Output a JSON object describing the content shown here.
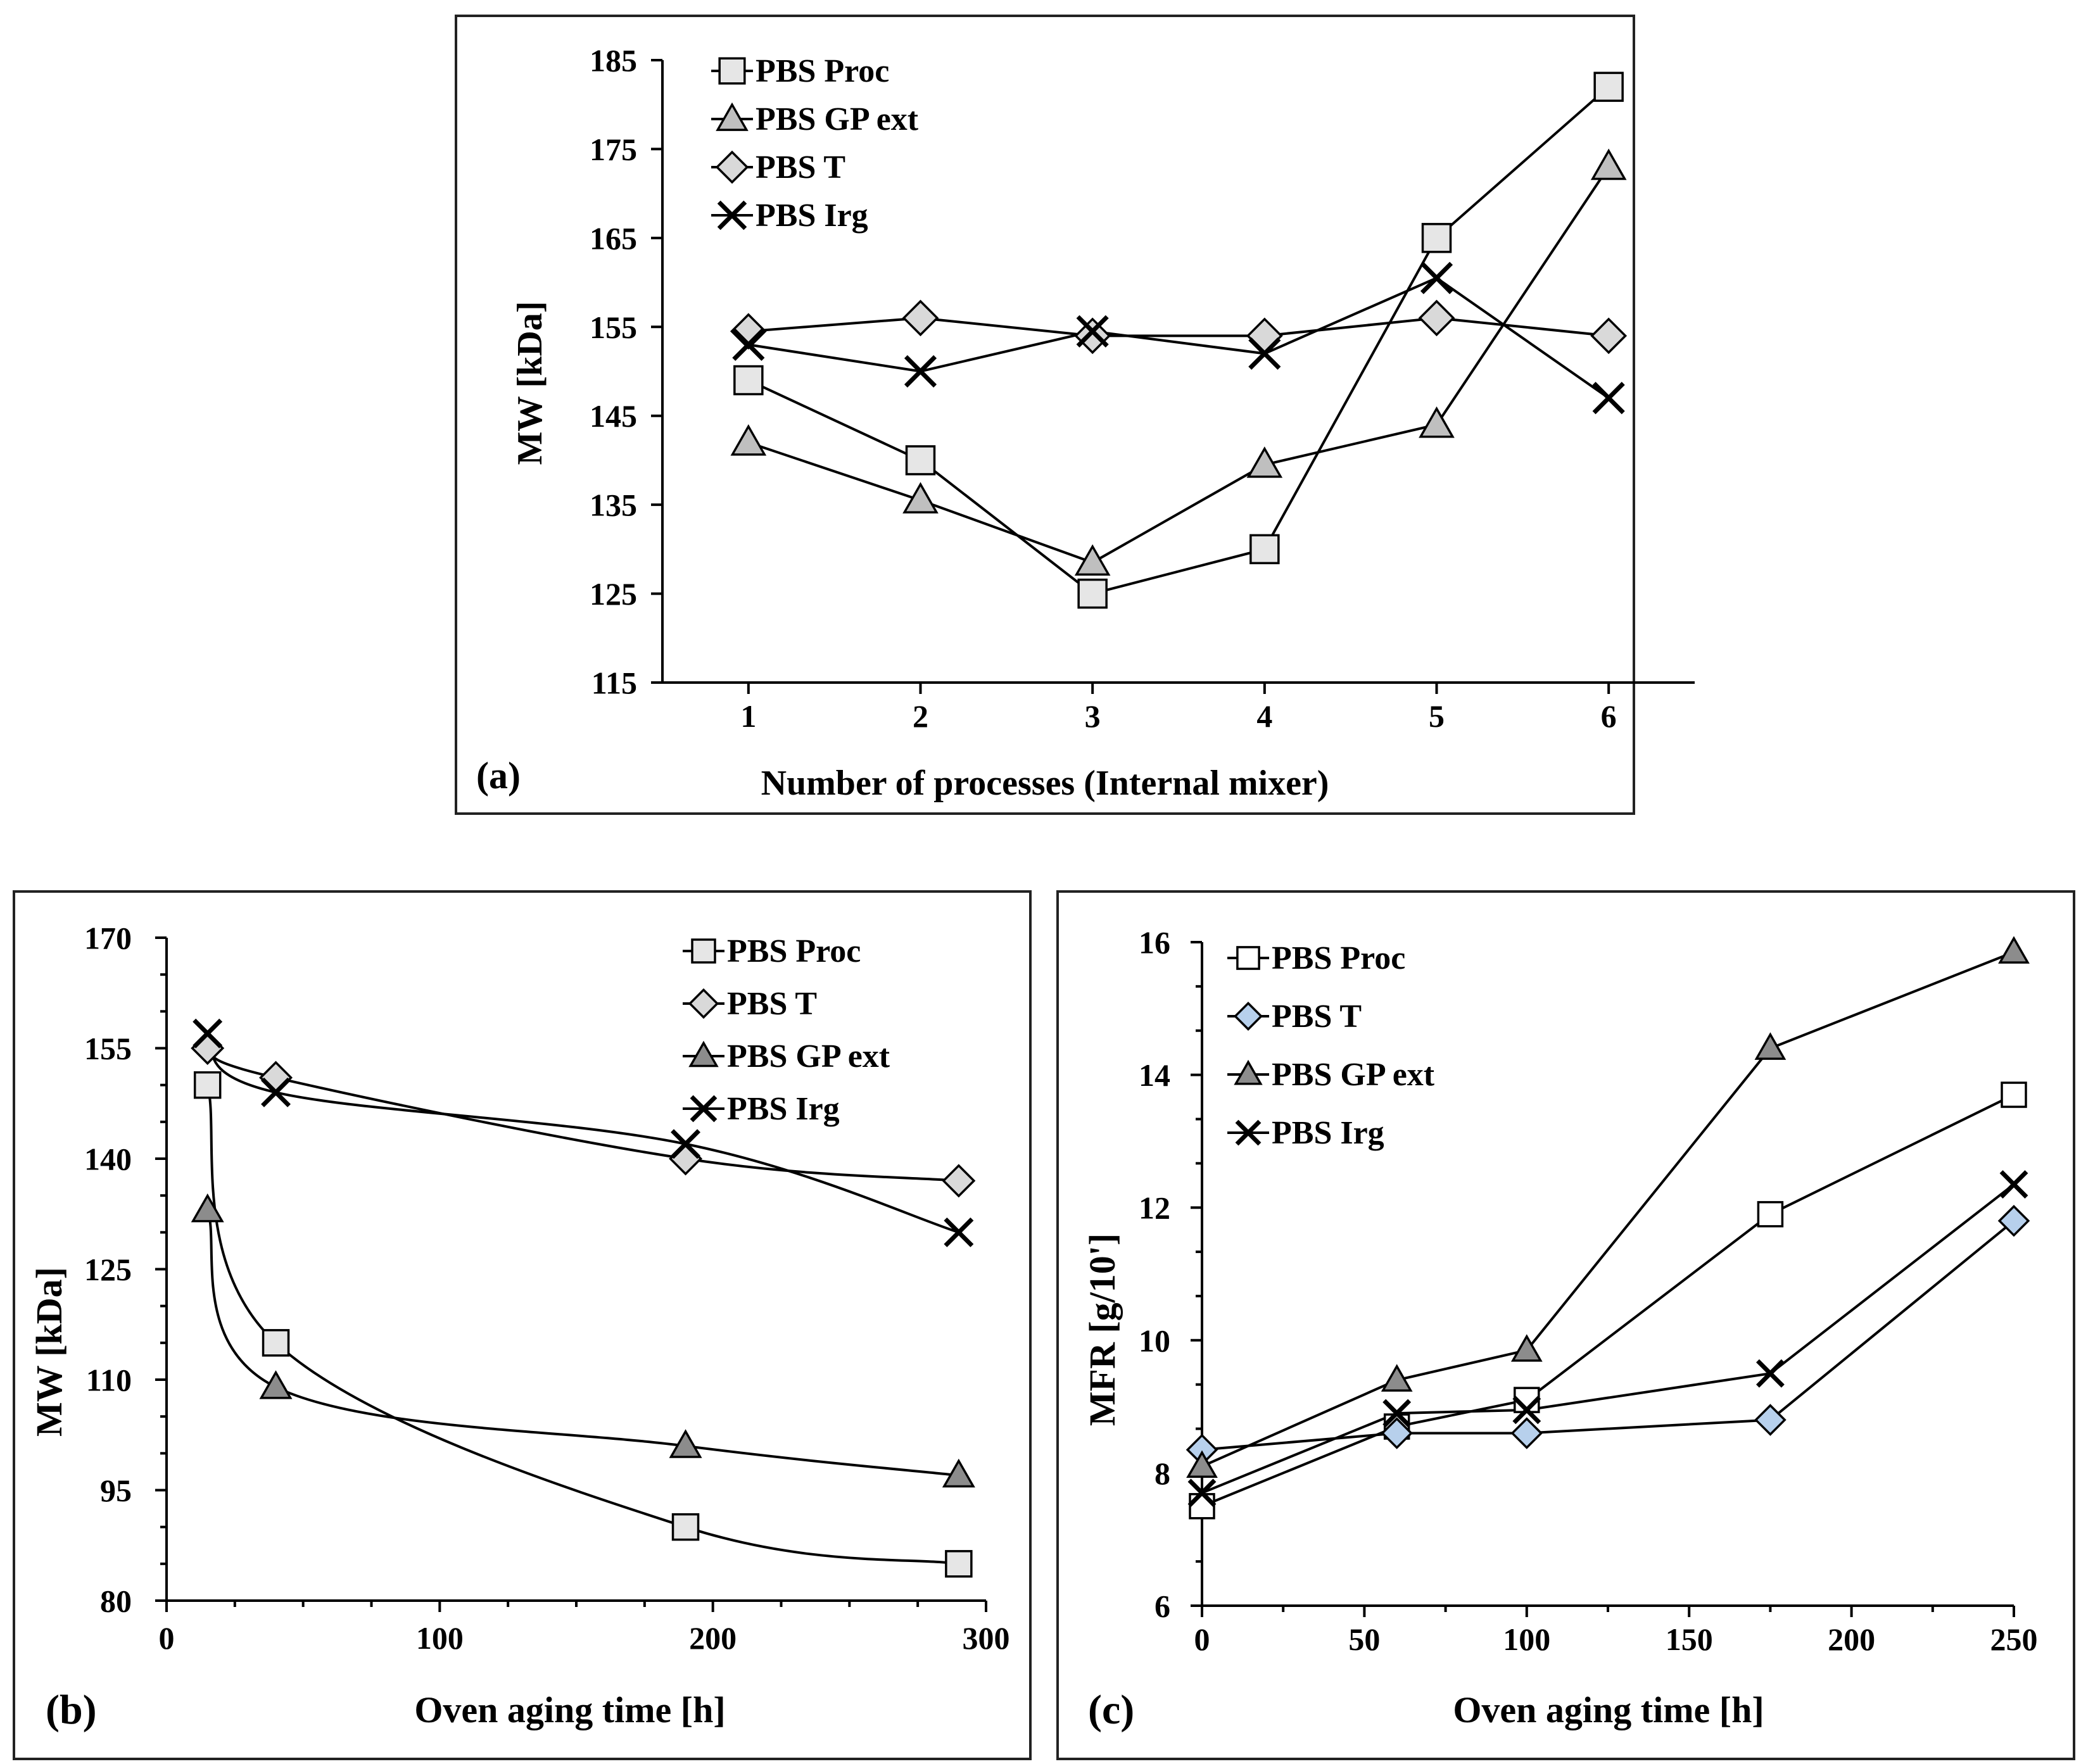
{
  "figure_title": "",
  "chart_data": [
    {
      "panel": "(a)",
      "type": "line",
      "title": "",
      "xlabel": "Number of processes (Internal mixer)",
      "ylabel": "MW [kDa]",
      "xlim": [
        0.5,
        6.5
      ],
      "ylim": [
        115,
        185
      ],
      "xticks": [
        1,
        2,
        3,
        4,
        5,
        6
      ],
      "xtick_labels": [
        "1",
        "2",
        "3",
        "4",
        "5",
        "6"
      ],
      "yticks": [
        115,
        125,
        135,
        145,
        155,
        165,
        175,
        185
      ],
      "ytick_labels": [
        "115",
        "125",
        "135",
        "145",
        "155",
        "165",
        "175",
        "185"
      ],
      "legend_position": "top-left",
      "smooth": false,
      "series": [
        {
          "name": "PBS Proc",
          "marker": "square",
          "fill": "#e6e6e6",
          "x": [
            1,
            2,
            3,
            4,
            5,
            6
          ],
          "values": [
            149,
            140,
            125,
            130,
            165,
            182
          ]
        },
        {
          "name": "PBS GP ext",
          "marker": "triangle",
          "fill": "#bfbfbf",
          "x": [
            1,
            2,
            3,
            4,
            5,
            6
          ],
          "values": [
            142,
            135.5,
            128.5,
            139.5,
            144,
            173
          ]
        },
        {
          "name": "PBS T",
          "marker": "diamond",
          "fill": "#d9d9d9",
          "x": [
            1,
            2,
            3,
            4,
            5,
            6
          ],
          "values": [
            154.5,
            156,
            154,
            154,
            156,
            154
          ]
        },
        {
          "name": "PBS Irg",
          "marker": "x",
          "fill": "none",
          "x": [
            1,
            2,
            3,
            4,
            5,
            6
          ],
          "values": [
            153,
            150,
            154.5,
            152,
            160.5,
            147
          ]
        }
      ]
    },
    {
      "panel": "(b)",
      "type": "line",
      "title": "",
      "xlabel": "Oven aging time [h]",
      "ylabel": "MW [kDa]",
      "xlim": [
        0,
        300
      ],
      "ylim": [
        80,
        170
      ],
      "xticks": [
        0,
        100,
        200,
        300
      ],
      "xtick_labels": [
        "0",
        "100",
        "200",
        "300"
      ],
      "yticks": [
        80,
        95,
        110,
        125,
        140,
        155,
        170
      ],
      "ytick_labels": [
        "80",
        "95",
        "110",
        "125",
        "140",
        "155",
        "170"
      ],
      "legend_position": "top-right",
      "smooth": true,
      "series": [
        {
          "name": "PBS Proc",
          "marker": "square",
          "fill": "#e6e6e6",
          "x": [
            15,
            40,
            190,
            290
          ],
          "values": [
            150,
            115,
            90,
            85
          ]
        },
        {
          "name": "PBS T",
          "marker": "diamond",
          "fill": "#d9d9d9",
          "x": [
            15,
            40,
            190,
            290
          ],
          "values": [
            155,
            151,
            140,
            137
          ]
        },
        {
          "name": "PBS GP ext",
          "marker": "triangle",
          "fill": "#8c8c8c",
          "x": [
            15,
            40,
            190,
            290
          ],
          "values": [
            133,
            109,
            101,
            97
          ]
        },
        {
          "name": "PBS Irg",
          "marker": "x",
          "fill": "none",
          "x": [
            15,
            40,
            190,
            290
          ],
          "values": [
            157,
            149,
            142,
            130
          ]
        }
      ]
    },
    {
      "panel": "(c)",
      "type": "line",
      "title": "",
      "xlabel": "Oven aging time [h]",
      "ylabel": "MFR [g/10']",
      "xlim": [
        0,
        250
      ],
      "ylim": [
        6,
        16
      ],
      "xticks": [
        0,
        50,
        100,
        150,
        200,
        250
      ],
      "xtick_labels": [
        "0",
        "50",
        "100",
        "150",
        "200",
        "250"
      ],
      "yticks": [
        6,
        8,
        10,
        12,
        14,
        16
      ],
      "ytick_labels": [
        "6",
        "8",
        "10",
        "12",
        "14",
        "16"
      ],
      "legend_position": "top-left",
      "smooth": false,
      "series": [
        {
          "name": "PBS Proc",
          "marker": "square",
          "fill": "#ffffff",
          "x": [
            0,
            60,
            100,
            175,
            250
          ],
          "values": [
            7.5,
            8.7,
            9.1,
            11.9,
            13.7
          ]
        },
        {
          "name": "PBS T",
          "marker": "diamond",
          "fill": "#b7d0ec",
          "x": [
            0,
            60,
            100,
            175,
            250
          ],
          "values": [
            8.35,
            8.6,
            8.6,
            8.8,
            11.8
          ]
        },
        {
          "name": "PBS GP ext",
          "marker": "triangle",
          "fill": "#8c8c8c",
          "x": [
            0,
            60,
            100,
            175,
            250
          ],
          "values": [
            8.1,
            9.4,
            9.85,
            14.4,
            15.85
          ]
        },
        {
          "name": "PBS Irg",
          "marker": "x",
          "fill": "none",
          "x": [
            0,
            60,
            100,
            175,
            250
          ],
          "values": [
            7.7,
            8.9,
            8.95,
            9.5,
            12.35
          ]
        }
      ]
    }
  ]
}
